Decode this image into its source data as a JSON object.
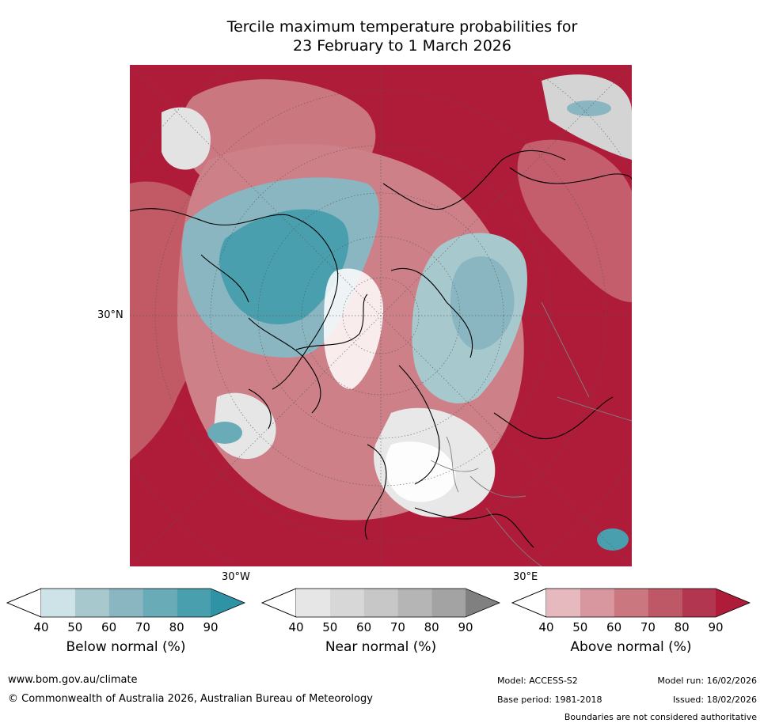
{
  "title": {
    "line1": "Tercile maximum temperature probabilities for",
    "line2": "23 February to 1 March 2026"
  },
  "map": {
    "projection": "north-polar-stereographic",
    "lat_label": "30°N",
    "lon_labels": {
      "west": "30°W",
      "east": "30°E"
    }
  },
  "colorbars": [
    {
      "id": "below",
      "title": "Below normal (%)",
      "ticks": [
        "40",
        "50",
        "60",
        "70",
        "80",
        "90"
      ],
      "colors": [
        "#cde3e7",
        "#a7c9cd",
        "#8ab6c2",
        "#6aabb8",
        "#4a9fae",
        "#2f93a6"
      ],
      "low_color": "#ffffff"
    },
    {
      "id": "near",
      "title": "Near normal (%)",
      "ticks": [
        "40",
        "50",
        "60",
        "70",
        "80",
        "90"
      ],
      "colors": [
        "#e6e6e6",
        "#d7d7d7",
        "#c7c7c7",
        "#b5b5b5",
        "#a3a3a3",
        "#808080"
      ],
      "low_color": "#ffffff"
    },
    {
      "id": "above",
      "title": "Above normal (%)",
      "ticks": [
        "40",
        "50",
        "60",
        "70",
        "80",
        "90"
      ],
      "colors": [
        "#e6b9bf",
        "#d8979e",
        "#cb7780",
        "#be5867",
        "#b33650",
        "#ae1c3a"
      ],
      "low_color": "#ffffff"
    }
  ],
  "footer": {
    "url": "www.bom.gov.au/climate",
    "copyright": "© Commonwealth of Australia 2026, Australian Bureau of Meteorology",
    "model": "Model: ACCESS-S2",
    "base_period": "Base period: 1981-2018",
    "model_run": "Model run: 16/02/2026",
    "issued": "Issued: 18/02/2026",
    "disclaimer": "Boundaries are not considered authoritative"
  }
}
